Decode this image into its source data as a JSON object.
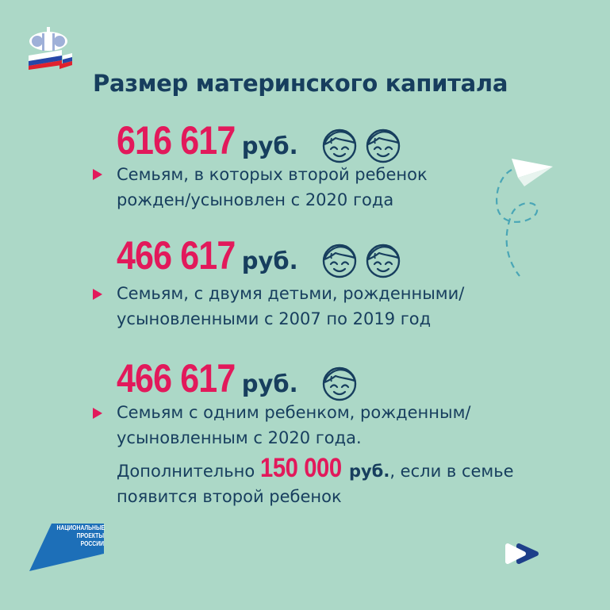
{
  "logo_top": {
    "name": "pfr-logo-icon"
  },
  "title": "Размер материнского капитала",
  "blocks": [
    {
      "amount": "616 617",
      "currency": "руб.",
      "children_icons": 2,
      "lines": [
        "Семьям, в которых второй ребенок",
        "рожден/усыновлен с 2020 года"
      ]
    },
    {
      "amount": "466 617",
      "currency": "руб.",
      "children_icons": 2,
      "lines": [
        "Семьям, с двумя детьми, рожденными/",
        "усыновленными с 2007 по 2019 год"
      ]
    },
    {
      "amount": "466 617",
      "currency": "руб.",
      "children_icons": 1,
      "lines": [
        "Семьям с одним ребенком, рожденным/",
        "усыновленным с 2020 года."
      ],
      "extra": {
        "prefix": "Дополнительно",
        "amount": "150 000",
        "currency": "руб.",
        "suffix": ", если в семье",
        "line2": "появится второй ребенок"
      }
    }
  ],
  "logo_bottom": {
    "text": "НАЦИОНАЛЬНЫЕ ПРОЕКТЫ РОССИИ"
  },
  "colors": {
    "background": "#acd8c7",
    "accent": "#e2195b",
    "text": "#173e5e",
    "brand_blue": "#1d6fb8"
  }
}
